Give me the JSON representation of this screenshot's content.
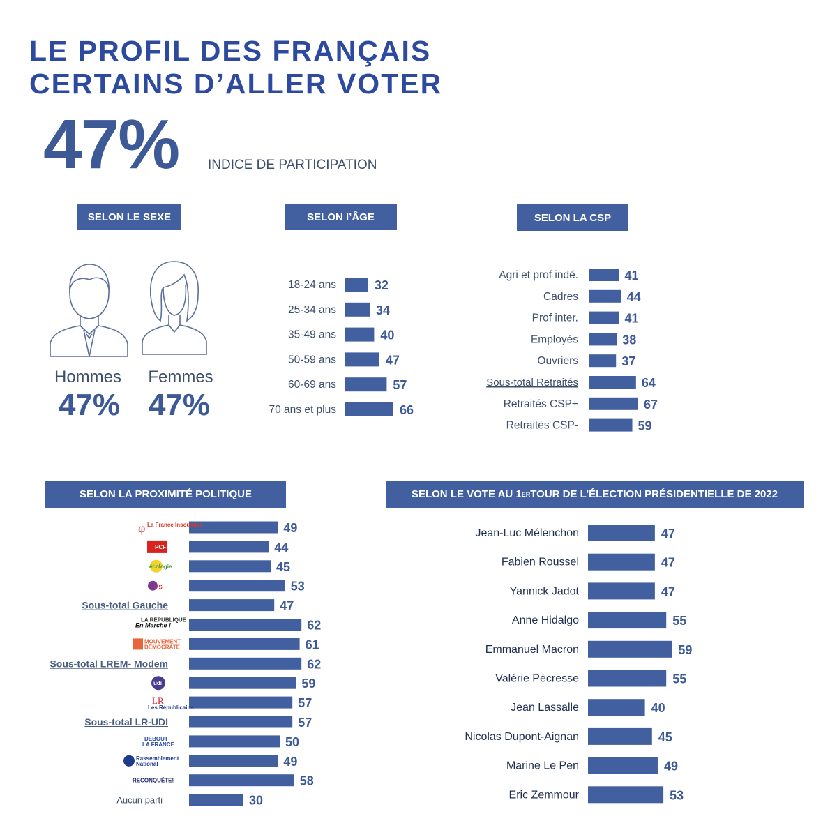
{
  "title": "LE PROFIL DES FRANÇAIS\nCERTAINS D’ALLER VOTER",
  "headline": {
    "value": "47%",
    "label": "INDICE DE PARTICIPATION"
  },
  "headers": {
    "sexe": "SELON LE SEXE",
    "age": "SELON l’ÂGE",
    "csp": "SELON LA CSP",
    "politique": "SELON LA PROXIMITÉ POLITIQUE",
    "vote_pre": "SELON LE VOTE AU 1",
    "vote_sup": "ER",
    "vote_post": " TOUR DE L’ÉLECTION PRÉSIDENTIELLE DE 2022"
  },
  "gender": {
    "hommes": {
      "label": "Hommes",
      "value": "47%"
    },
    "femmes": {
      "label": "Femmes",
      "value": "47%"
    }
  },
  "colors": {
    "bar": "#4260a0",
    "title": "#2e4a9e",
    "header": "#4260a0"
  },
  "chart_data": [
    {
      "type": "bar",
      "id": "age",
      "categories": [
        "18-24 ans",
        "25-34 ans",
        "35-49 ans",
        "50-59 ans",
        "60-69 ans",
        "70 ans et plus"
      ],
      "values": [
        32,
        34,
        40,
        47,
        57,
        66
      ]
    },
    {
      "type": "bar",
      "id": "csp",
      "categories": [
        "Agri et prof indé.",
        "Cadres",
        "Prof inter.",
        "Employés",
        "Ouvriers",
        "Sous-total Retraités",
        "Retraités CSP+",
        "Retraités CSP-"
      ],
      "values": [
        41,
        44,
        41,
        38,
        37,
        64,
        67,
        59
      ]
    },
    {
      "type": "bar",
      "id": "politique",
      "categories": [
        "La France Insoumise",
        "PCF",
        "Europe Écologie",
        "PS",
        "Sous-total Gauche",
        "La République En Marche !",
        "Mouvement Démocrate",
        "Sous-total LREM- Modem",
        "UDI",
        "Les Républicains",
        "Sous-total LR-UDI",
        "Debout la France",
        "Rassemblement National",
        "RECONQUÊTE!",
        "Aucun parti"
      ],
      "values": [
        49,
        44,
        45,
        53,
        47,
        62,
        61,
        62,
        59,
        57,
        57,
        50,
        49,
        58,
        30
      ]
    },
    {
      "type": "bar",
      "id": "vote",
      "categories": [
        "Jean-Luc Mélenchon",
        "Fabien Roussel",
        "Yannick Jadot",
        "Anne Hidalgo",
        "Emmanuel Macron",
        "Valérie Pécresse",
        "Jean Lassalle",
        "Nicolas Dupont-Aignan",
        "Marine Le Pen",
        "Eric Zemmour"
      ],
      "values": [
        47,
        47,
        47,
        55,
        59,
        55,
        40,
        45,
        49,
        53
      ]
    }
  ],
  "logos": {
    "lfi": "La France Insoumise",
    "pcf": "PCF",
    "eelv": "écologie",
    "ps": "PS",
    "lrem_top": "LA RÉPUBLIQUE",
    "lrem": "En Marche !",
    "modem_1": "MOUVEMENT",
    "modem_2": "DÉMOCRATE",
    "udi": "udi",
    "lr_1": "LR",
    "lr_2": "Les Républicains",
    "dlf_1": "DEBOUT",
    "dlf_2": "LA FRANCE",
    "rn_1": "Rassemblement",
    "rn_2": "National",
    "reconquete": "RECONQUÊTE!"
  }
}
